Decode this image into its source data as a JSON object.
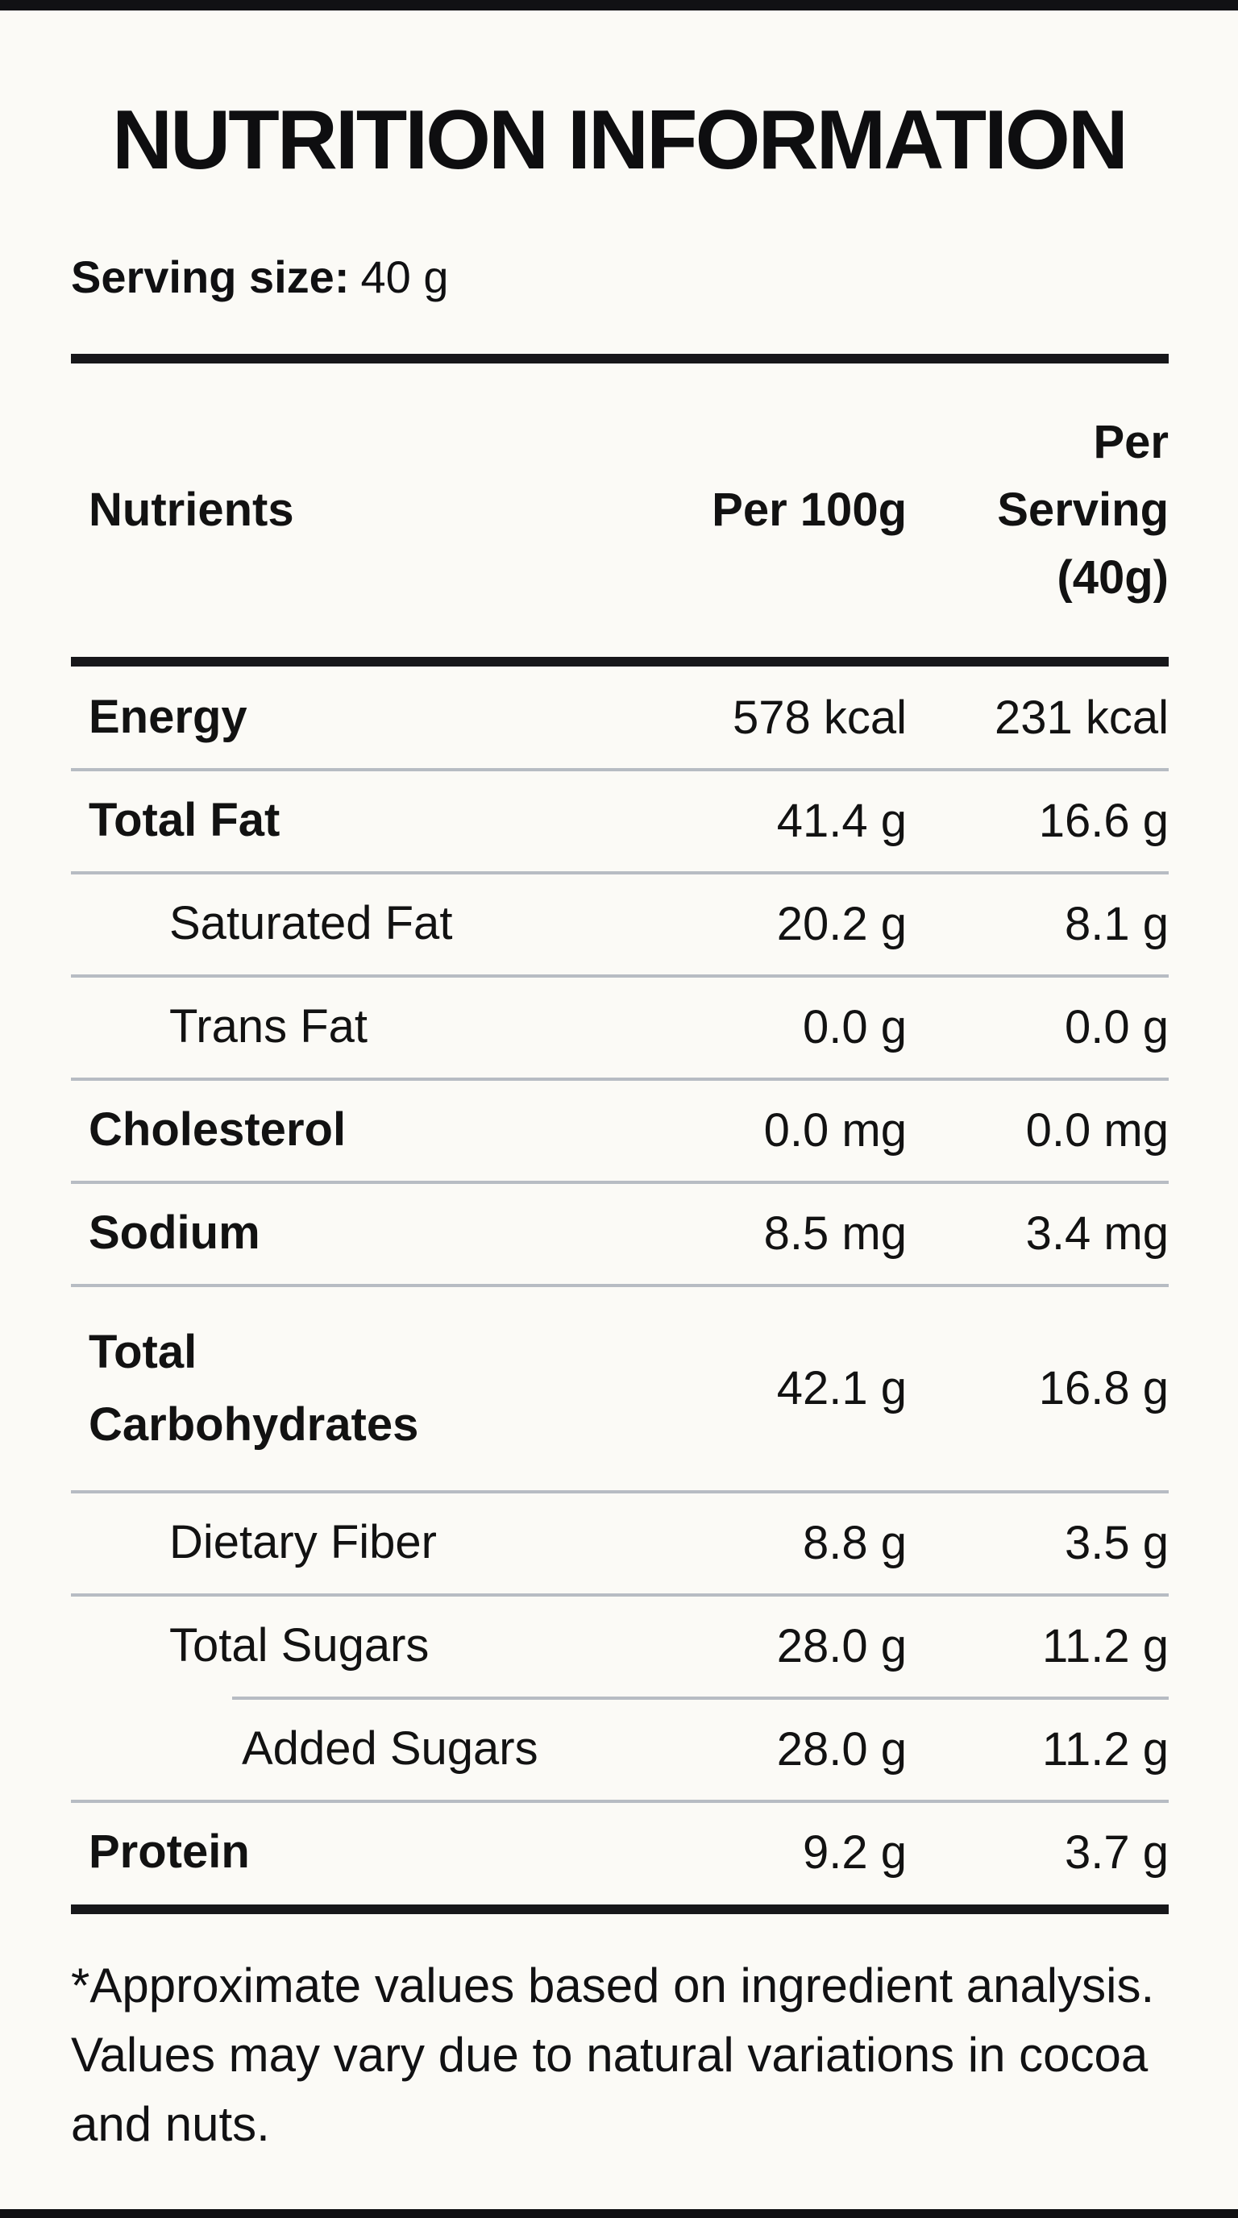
{
  "title": "NUTRITION INFORMATION",
  "serving": {
    "label": "Serving size:",
    "value": "40 g"
  },
  "table": {
    "header": {
      "nutrients": "Nutrients",
      "per_100g": "Per 100g",
      "per_serving": {
        "line1": "Per",
        "line2": "Serving",
        "line3": "(40g)"
      }
    },
    "rows": [
      {
        "label": "Energy",
        "per_100g": "578 kcal",
        "per_serving": "231 kcal"
      },
      {
        "label": "Total Fat",
        "per_100g": "41.4 g",
        "per_serving": "16.6 g"
      },
      {
        "label": "Saturated Fat",
        "per_100g": "20.2 g",
        "per_serving": "8.1 g"
      },
      {
        "label": "Trans Fat",
        "per_100g": "0.0 g",
        "per_serving": "0.0 g"
      },
      {
        "label": "Cholesterol",
        "per_100g": "0.0 mg",
        "per_serving": "0.0 mg"
      },
      {
        "label": "Sodium",
        "per_100g": "8.5 mg",
        "per_serving": "3.4 mg"
      },
      {
        "label": "Total Carbohydrates",
        "per_100g": "42.1 g",
        "per_serving": "16.8 g"
      },
      {
        "label": "Dietary Fiber",
        "per_100g": "8.8 g",
        "per_serving": "3.5 g"
      },
      {
        "label": "Total Sugars",
        "per_100g": "28.0 g",
        "per_serving": "11.2 g"
      },
      {
        "label": "Added Sugars",
        "per_100g": "28.0 g",
        "per_serving": "11.2 g"
      },
      {
        "label": "Protein",
        "per_100g": "9.2 g",
        "per_serving": "3.7 g"
      }
    ]
  },
  "footnote": "*Approximate values based on ingredient analysis. Values may vary due to natural variations in cocoa and nuts.",
  "colors": {
    "background": "#fbfaf6",
    "text": "#121212",
    "thick_rule": "#17171a",
    "divider": "#b7bcc3"
  }
}
